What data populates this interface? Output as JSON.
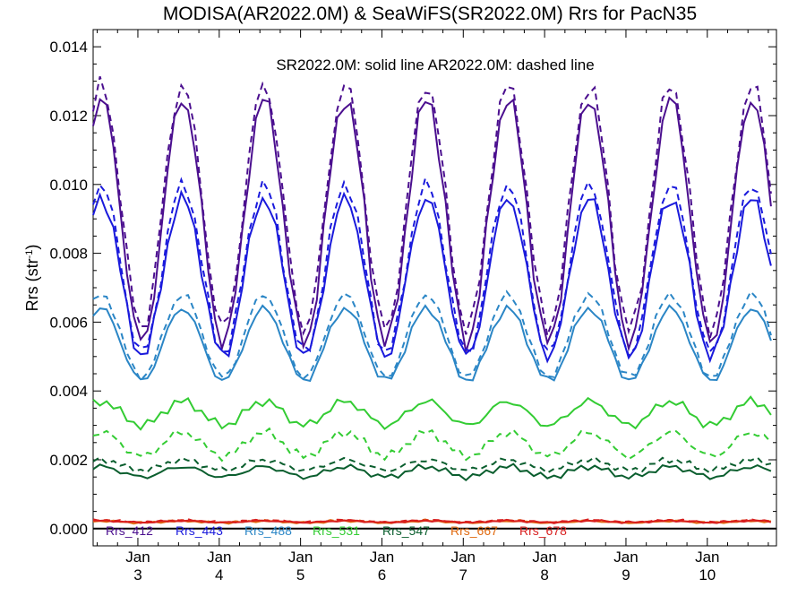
{
  "chart_data": {
    "type": "line",
    "title": "MODISA(AR2022.0M) & SeaWiFS(SR2022.0M)  Rrs for PacN35",
    "ylabel": "Rrs (str",
    "ylabel_sup": "-1",
    "ylabel_close": ")",
    "note": "SR2022.0M: solid line   AR2022.0M: dashed line",
    "ylim": [
      -0.0005,
      0.0145
    ],
    "xlim": [
      2002.45,
      2010.85
    ],
    "y_ticks": [
      0.0,
      0.002,
      0.004,
      0.006,
      0.008,
      0.01,
      0.012,
      0.014
    ],
    "y_tick_labels": [
      "0.000",
      "0.002",
      "0.004",
      "0.006",
      "0.008",
      "0.010",
      "0.012",
      "0.014"
    ],
    "x_ticks": [
      {
        "value": 2003,
        "month": "Jan",
        "year": "3"
      },
      {
        "value": 2004,
        "month": "Jan",
        "year": "4"
      },
      {
        "value": 2005,
        "month": "Jan",
        "year": "5"
      },
      {
        "value": 2006,
        "month": "Jan",
        "year": "6"
      },
      {
        "value": 2007,
        "month": "Jan",
        "year": "7"
      },
      {
        "value": 2008,
        "month": "Jan",
        "year": "8"
      },
      {
        "value": 2009,
        "month": "Jan",
        "year": "9"
      },
      {
        "value": 2010,
        "month": "Jan",
        "year": "10"
      }
    ],
    "legend_placement": "bottom",
    "zero_line": true,
    "series": [
      {
        "name": "Rrs_412",
        "color": "#4b0f8f",
        "winter": 0.0054,
        "summer": 0.0125,
        "dwinter": 0.0058,
        "dsummer": 0.0129,
        "noise": 0.0003
      },
      {
        "name": "Rrs_443",
        "color": "#1a1adc",
        "winter": 0.005,
        "summer": 0.0096,
        "dwinter": 0.0051,
        "dsummer": 0.01,
        "noise": 0.00022
      },
      {
        "name": "Rrs_488",
        "color": "#2b86c6",
        "winter": 0.0043,
        "summer": 0.0064,
        "dwinter": 0.0044,
        "dsummer": 0.0068,
        "noise": 0.00012
      },
      {
        "name": "Rrs_531",
        "color": "#33cc33",
        "winter": 0.003,
        "summer": 0.0037,
        "dwinter": 0.0021,
        "dsummer": 0.0028,
        "noise": 0.00015
      },
      {
        "name": "Rrs_547",
        "color": "#0a5e2e",
        "winter": 0.0015,
        "summer": 0.0018,
        "dwinter": 0.0017,
        "dsummer": 0.002,
        "noise": 0.0001
      },
      {
        "name": "Rrs_667",
        "color": "#e06a10",
        "winter": 0.00017,
        "summer": 0.00022,
        "dwinter": 0.00018,
        "dsummer": 0.00024,
        "noise": 3e-05
      },
      {
        "name": "Rrs_678",
        "color": "#d81f1f",
        "winter": 0.00018,
        "summer": 0.00023,
        "dwinter": 0.00019,
        "dsummer": 0.00025,
        "noise": 3e-05
      }
    ]
  }
}
